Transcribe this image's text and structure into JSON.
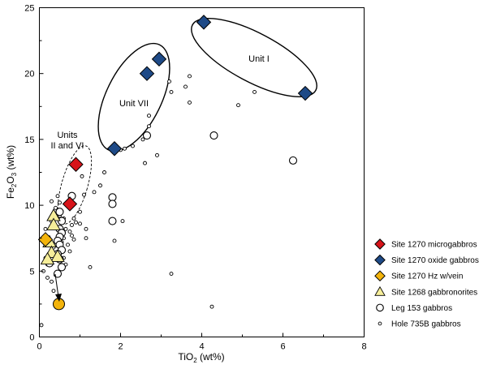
{
  "chart_data": {
    "type": "scatter",
    "title": "",
    "xlabel": "TiO2 (wt%)",
    "xlabel_main": "TiO",
    "xlabel_sub": "2",
    "xlabel_tail": " (wt%)",
    "ylabel": "Fe2O3 (wt%)",
    "ylabel_main1": "Fe",
    "ylabel_sub1": "2",
    "ylabel_main2": "O",
    "ylabel_sub2": "3",
    "ylabel_tail": " (wt%)",
    "xlim": [
      0,
      8
    ],
    "ylim": [
      0,
      25
    ],
    "x_ticks": [
      0,
      2,
      4,
      6,
      8
    ],
    "x_tick_labels": [
      "0",
      "2",
      "4",
      "6",
      "8"
    ],
    "y_ticks": [
      0,
      5,
      10,
      15,
      20,
      25
    ],
    "y_tick_labels": [
      "0",
      "5",
      "10",
      "15",
      "20",
      "25"
    ],
    "grid": false,
    "legend_position": "bottom-right outside",
    "colors": {
      "microgabbro": "#d7141a",
      "oxide": "#1e4a87",
      "hzvein": "#f3b40c",
      "gabbronorite": "#f6ee9a",
      "leg153": "#ffffff",
      "hole735b": "#ffffff"
    },
    "series": [
      {
        "name": "Site 1270 microgabbros",
        "key": "microgabbro",
        "marker": "diamond",
        "points": [
          [
            0.9,
            13.1
          ],
          [
            0.75,
            10.1
          ]
        ]
      },
      {
        "name": "Site 1270 oxide gabbros",
        "key": "oxide",
        "marker": "diamond",
        "points": [
          [
            4.05,
            23.9
          ],
          [
            6.55,
            18.5
          ],
          [
            2.95,
            21.1
          ],
          [
            2.65,
            20.0
          ],
          [
            1.85,
            14.3
          ]
        ]
      },
      {
        "name": "Site 1270 Hz w/vein",
        "key": "hzvein",
        "marker": "diamond",
        "points": [
          [
            0.15,
            7.4
          ]
        ]
      },
      {
        "name": "Site 1268 gabbronorites",
        "key": "gabbronorite",
        "marker": "triangle",
        "points": [
          [
            0.35,
            9.2
          ],
          [
            0.35,
            8.5
          ],
          [
            0.25,
            7.2
          ],
          [
            0.3,
            6.4
          ],
          [
            0.45,
            6.1
          ],
          [
            0.2,
            5.9
          ]
        ]
      },
      {
        "name": "Leg 153 gabbros",
        "key": "leg153",
        "marker": "circle-large",
        "points": [
          [
            0.8,
            10.7
          ],
          [
            1.8,
            10.6
          ],
          [
            1.8,
            10.1
          ],
          [
            1.8,
            8.8
          ],
          [
            2.65,
            15.3
          ],
          [
            4.3,
            15.3
          ],
          [
            6.25,
            13.4
          ],
          [
            0.5,
            9.5
          ],
          [
            0.55,
            8.8
          ],
          [
            0.5,
            8.2
          ],
          [
            0.55,
            7.9
          ],
          [
            0.5,
            7.6
          ],
          [
            0.45,
            7.3
          ],
          [
            0.5,
            7.0
          ],
          [
            0.55,
            6.6
          ],
          [
            0.45,
            6.3
          ],
          [
            0.5,
            5.9
          ],
          [
            0.25,
            5.6
          ],
          [
            0.55,
            5.3
          ],
          [
            0.45,
            4.8
          ]
        ]
      },
      {
        "name": "Hole 735B gabbros",
        "key": "hole735b",
        "marker": "circle-small",
        "points": [
          [
            3.2,
            19.4
          ],
          [
            3.25,
            18.6
          ],
          [
            3.7,
            19.8
          ],
          [
            3.6,
            19.0
          ],
          [
            3.7,
            17.8
          ],
          [
            4.9,
            17.6
          ],
          [
            5.3,
            18.6
          ],
          [
            2.7,
            16.8
          ],
          [
            2.7,
            16.0
          ],
          [
            2.55,
            15.0
          ],
          [
            2.3,
            14.5
          ],
          [
            2.1,
            14.3
          ],
          [
            2.6,
            13.2
          ],
          [
            2.9,
            13.8
          ],
          [
            2.0,
            14.2
          ],
          [
            1.6,
            12.5
          ],
          [
            1.5,
            11.5
          ],
          [
            1.1,
            10.8
          ],
          [
            1.05,
            12.2
          ],
          [
            1.35,
            11.0
          ],
          [
            1.0,
            9.5
          ],
          [
            0.85,
            9.0
          ],
          [
            1.15,
            8.2
          ],
          [
            1.15,
            7.5
          ],
          [
            1.0,
            8.6
          ],
          [
            0.9,
            8.7
          ],
          [
            0.8,
            8.5
          ],
          [
            0.75,
            8.0
          ],
          [
            0.8,
            7.7
          ],
          [
            0.65,
            8.2
          ],
          [
            0.85,
            7.4
          ],
          [
            0.6,
            7.5
          ],
          [
            0.7,
            7.0
          ],
          [
            0.55,
            7.2
          ],
          [
            0.5,
            10.2
          ],
          [
            0.45,
            10.7
          ],
          [
            0.3,
            10.3
          ],
          [
            0.4,
            9.8
          ],
          [
            0.5,
            9.2
          ],
          [
            0.6,
            9.0
          ],
          [
            0.3,
            8.8
          ],
          [
            0.15,
            8.2
          ],
          [
            0.2,
            7.0
          ],
          [
            0.35,
            6.8
          ],
          [
            0.15,
            6.0
          ],
          [
            0.2,
            5.5
          ],
          [
            0.1,
            5.0
          ],
          [
            0.2,
            4.5
          ],
          [
            0.3,
            4.2
          ],
          [
            0.4,
            4.7
          ],
          [
            0.35,
            3.5
          ],
          [
            0.05,
            0.9
          ],
          [
            1.85,
            7.3
          ],
          [
            2.05,
            8.8
          ],
          [
            1.25,
            5.3
          ],
          [
            3.25,
            4.8
          ],
          [
            4.25,
            2.3
          ],
          [
            0.75,
            6.5
          ],
          [
            0.6,
            6.0
          ],
          [
            0.65,
            5.5
          ]
        ]
      }
    ],
    "annotations": [
      {
        "text": "Unit I"
      },
      {
        "text": "Unit VII"
      },
      {
        "text": "Units"
      },
      {
        "text": "II and VI"
      }
    ]
  }
}
